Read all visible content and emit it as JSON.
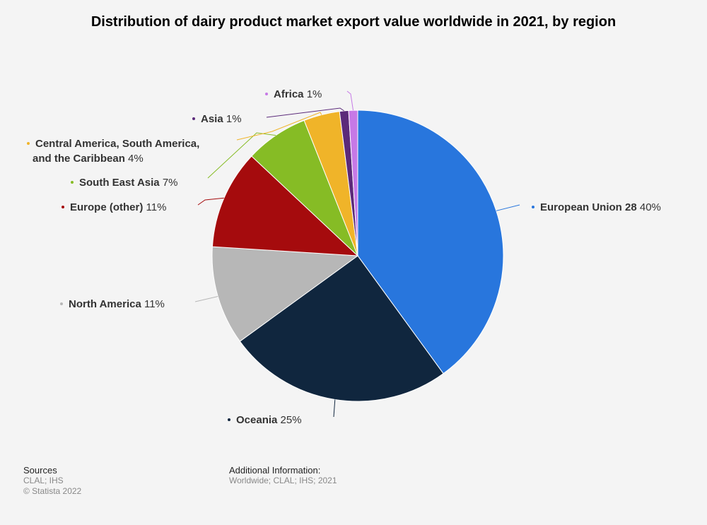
{
  "chart_data": {
    "type": "pie",
    "title": "Distribution of dairy product market export value worldwide in 2021, by region",
    "slices": [
      {
        "name": "European Union 28",
        "value": 40,
        "label": "40%",
        "color": "#2876dd"
      },
      {
        "name": "Oceania",
        "value": 25,
        "label": "25%",
        "color": "#10263e"
      },
      {
        "name": "North America",
        "value": 11,
        "label": "11%",
        "color": "#b7b7b7"
      },
      {
        "name": "Europe (other)",
        "value": 11,
        "label": "11%",
        "color": "#a50b0d"
      },
      {
        "name": "South East Asia",
        "value": 7,
        "label": "7%",
        "color": "#86bc25"
      },
      {
        "name": "Central America, South America, and the Caribbean",
        "value": 4,
        "label": "4%",
        "color": "#f0b429"
      },
      {
        "name": "Asia",
        "value": 1,
        "label": "1%",
        "color": "#5b2a7a"
      },
      {
        "name": "Africa",
        "value": 1,
        "label": "1%",
        "color": "#c679e6"
      }
    ]
  },
  "footer": {
    "sources_heading": "Sources",
    "sources_line": "CLAL; IHS",
    "copyright": "© Statista 2022",
    "additional_heading": "Additional Information:",
    "additional_line": "Worldwide; CLAL; IHS; 2021"
  }
}
